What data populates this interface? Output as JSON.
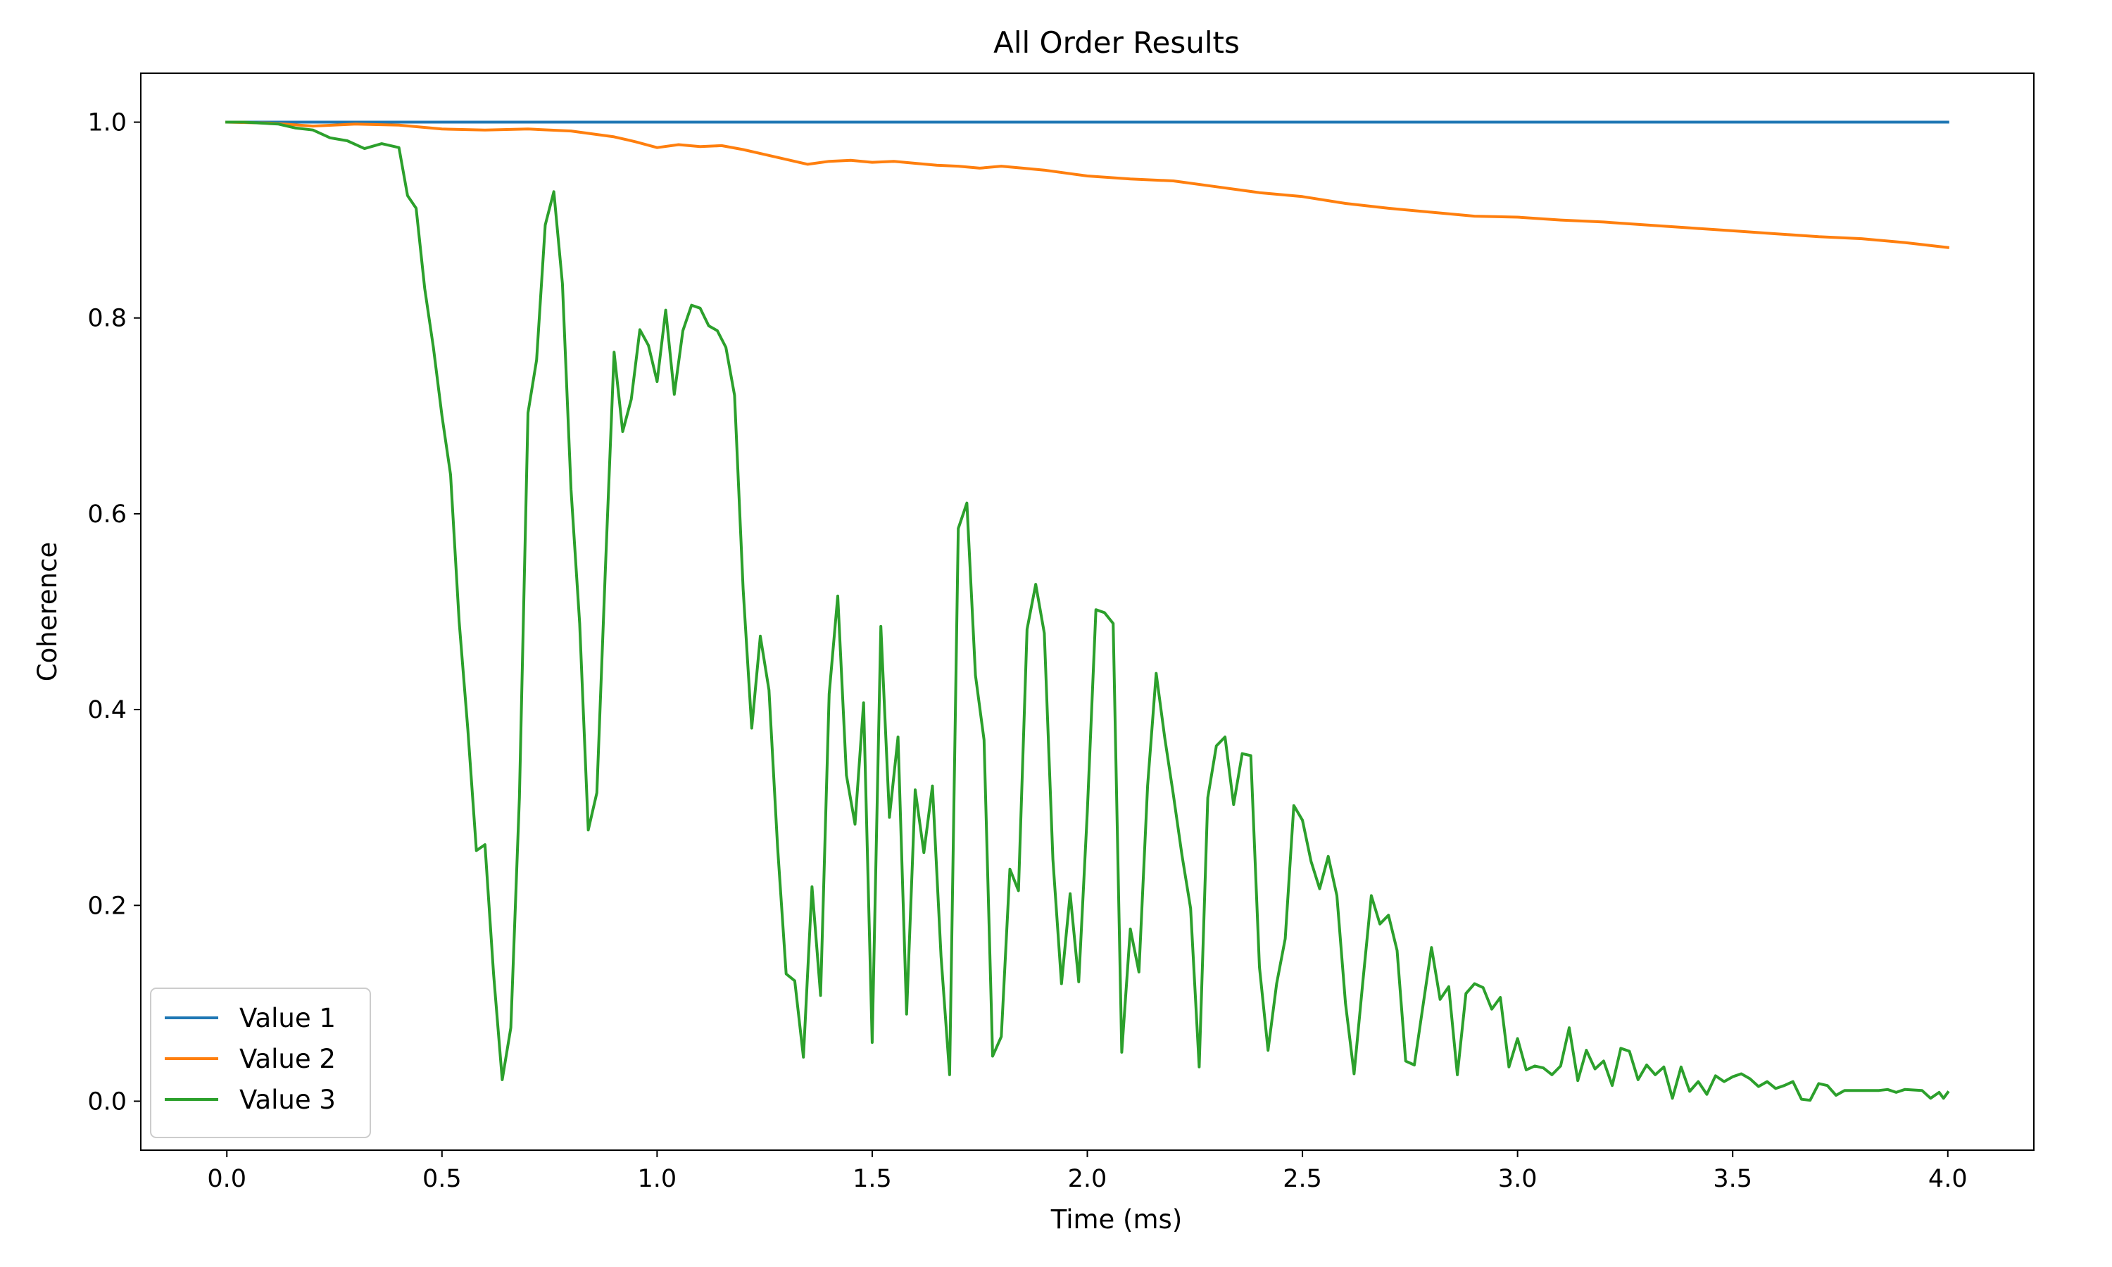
{
  "chart_data": {
    "type": "line",
    "title": "All Order Results",
    "xlabel": "Time (ms)",
    "ylabel": "Coherence",
    "xlim": [
      -0.2,
      4.2
    ],
    "ylim": [
      -0.05,
      1.05
    ],
    "xticks": [
      0.0,
      0.5,
      1.0,
      1.5,
      2.0,
      2.5,
      3.0,
      3.5,
      4.0
    ],
    "xtick_labels": [
      "0.0",
      "0.5",
      "1.0",
      "1.5",
      "2.0",
      "2.5",
      "3.0",
      "3.5",
      "4.0"
    ],
    "yticks": [
      0.0,
      0.2,
      0.4,
      0.6,
      0.8,
      1.0
    ],
    "ytick_labels": [
      "0.0",
      "0.2",
      "0.4",
      "0.6",
      "0.8",
      "1.0"
    ],
    "grid": false,
    "legend_position": "lower-left",
    "series": [
      {
        "name": "Value 1",
        "color": "#1f77b4",
        "points": [
          [
            0.0,
            1.0
          ],
          [
            4.0,
            1.0
          ]
        ]
      },
      {
        "name": "Value 2",
        "color": "#ff7f0e",
        "points": [
          [
            0.0,
            1.0
          ],
          [
            0.1,
            0.999
          ],
          [
            0.2,
            0.996
          ],
          [
            0.3,
            0.998
          ],
          [
            0.4,
            0.997
          ],
          [
            0.5,
            0.993
          ],
          [
            0.6,
            0.992
          ],
          [
            0.7,
            0.993
          ],
          [
            0.8,
            0.991
          ],
          [
            0.9,
            0.985
          ],
          [
            0.95,
            0.98
          ],
          [
            1.0,
            0.974
          ],
          [
            1.05,
            0.977
          ],
          [
            1.1,
            0.975
          ],
          [
            1.15,
            0.976
          ],
          [
            1.2,
            0.972
          ],
          [
            1.25,
            0.967
          ],
          [
            1.3,
            0.962
          ],
          [
            1.35,
            0.957
          ],
          [
            1.4,
            0.96
          ],
          [
            1.45,
            0.961
          ],
          [
            1.5,
            0.959
          ],
          [
            1.55,
            0.96
          ],
          [
            1.6,
            0.958
          ],
          [
            1.65,
            0.956
          ],
          [
            1.7,
            0.955
          ],
          [
            1.75,
            0.953
          ],
          [
            1.8,
            0.955
          ],
          [
            1.85,
            0.953
          ],
          [
            1.9,
            0.951
          ],
          [
            2.0,
            0.945
          ],
          [
            2.1,
            0.942
          ],
          [
            2.2,
            0.94
          ],
          [
            2.3,
            0.934
          ],
          [
            2.4,
            0.928
          ],
          [
            2.5,
            0.924
          ],
          [
            2.6,
            0.917
          ],
          [
            2.7,
            0.912
          ],
          [
            2.8,
            0.908
          ],
          [
            2.9,
            0.904
          ],
          [
            3.0,
            0.903
          ],
          [
            3.1,
            0.9
          ],
          [
            3.2,
            0.898
          ],
          [
            3.3,
            0.895
          ],
          [
            3.4,
            0.892
          ],
          [
            3.5,
            0.889
          ],
          [
            3.6,
            0.886
          ],
          [
            3.7,
            0.883
          ],
          [
            3.8,
            0.881
          ],
          [
            3.9,
            0.877
          ],
          [
            4.0,
            0.872
          ]
        ]
      },
      {
        "name": "Value 3",
        "color": "#2ca02c",
        "points": [
          [
            0.0,
            1.0
          ],
          [
            0.04,
            1.0
          ],
          [
            0.08,
            0.999
          ],
          [
            0.12,
            0.998
          ],
          [
            0.16,
            0.994
          ],
          [
            0.2,
            0.992
          ],
          [
            0.24,
            0.984
          ],
          [
            0.28,
            0.981
          ],
          [
            0.32,
            0.973
          ],
          [
            0.36,
            0.978
          ],
          [
            0.4,
            0.974
          ],
          [
            0.42,
            0.925
          ],
          [
            0.44,
            0.912
          ],
          [
            0.46,
            0.83
          ],
          [
            0.48,
            0.77
          ],
          [
            0.5,
            0.7
          ],
          [
            0.52,
            0.64
          ],
          [
            0.54,
            0.49
          ],
          [
            0.56,
            0.38
          ],
          [
            0.58,
            0.256
          ],
          [
            0.6,
            0.262
          ],
          [
            0.62,
            0.13
          ],
          [
            0.64,
            0.022
          ],
          [
            0.66,
            0.075
          ],
          [
            0.68,
            0.31
          ],
          [
            0.7,
            0.703
          ],
          [
            0.72,
            0.757
          ],
          [
            0.74,
            0.895
          ],
          [
            0.76,
            0.929
          ],
          [
            0.78,
            0.835
          ],
          [
            0.8,
            0.625
          ],
          [
            0.82,
            0.488
          ],
          [
            0.84,
            0.277
          ],
          [
            0.86,
            0.315
          ],
          [
            0.88,
            0.545
          ],
          [
            0.9,
            0.765
          ],
          [
            0.92,
            0.684
          ],
          [
            0.94,
            0.717
          ],
          [
            0.96,
            0.788
          ],
          [
            0.98,
            0.772
          ],
          [
            1.0,
            0.735
          ],
          [
            1.02,
            0.808
          ],
          [
            1.04,
            0.722
          ],
          [
            1.06,
            0.787
          ],
          [
            1.08,
            0.813
          ],
          [
            1.1,
            0.81
          ],
          [
            1.12,
            0.792
          ],
          [
            1.14,
            0.787
          ],
          [
            1.16,
            0.77
          ],
          [
            1.18,
            0.721
          ],
          [
            1.2,
            0.523
          ],
          [
            1.22,
            0.381
          ],
          [
            1.24,
            0.475
          ],
          [
            1.26,
            0.42
          ],
          [
            1.28,
            0.26
          ],
          [
            1.3,
            0.13
          ],
          [
            1.32,
            0.123
          ],
          [
            1.34,
            0.045
          ],
          [
            1.36,
            0.219
          ],
          [
            1.38,
            0.108
          ],
          [
            1.4,
            0.416
          ],
          [
            1.42,
            0.516
          ],
          [
            1.44,
            0.333
          ],
          [
            1.46,
            0.283
          ],
          [
            1.48,
            0.407
          ],
          [
            1.5,
            0.06
          ],
          [
            1.52,
            0.485
          ],
          [
            1.54,
            0.29
          ],
          [
            1.56,
            0.372
          ],
          [
            1.58,
            0.089
          ],
          [
            1.6,
            0.318
          ],
          [
            1.62,
            0.254
          ],
          [
            1.64,
            0.322
          ],
          [
            1.66,
            0.148
          ],
          [
            1.68,
            0.027
          ],
          [
            1.7,
            0.585
          ],
          [
            1.72,
            0.611
          ],
          [
            1.74,
            0.435
          ],
          [
            1.76,
            0.369
          ],
          [
            1.78,
            0.046
          ],
          [
            1.8,
            0.066
          ],
          [
            1.82,
            0.237
          ],
          [
            1.84,
            0.215
          ],
          [
            1.86,
            0.482
          ],
          [
            1.88,
            0.528
          ],
          [
            1.9,
            0.478
          ],
          [
            1.92,
            0.247
          ],
          [
            1.94,
            0.12
          ],
          [
            1.96,
            0.212
          ],
          [
            1.98,
            0.122
          ],
          [
            2.0,
            0.296
          ],
          [
            2.02,
            0.502
          ],
          [
            2.04,
            0.499
          ],
          [
            2.06,
            0.488
          ],
          [
            2.08,
            0.05
          ],
          [
            2.1,
            0.176
          ],
          [
            2.12,
            0.132
          ],
          [
            2.14,
            0.322
          ],
          [
            2.16,
            0.437
          ],
          [
            2.18,
            0.371
          ],
          [
            2.2,
            0.313
          ],
          [
            2.22,
            0.251
          ],
          [
            2.24,
            0.197
          ],
          [
            2.26,
            0.035
          ],
          [
            2.28,
            0.31
          ],
          [
            2.3,
            0.363
          ],
          [
            2.32,
            0.372
          ],
          [
            2.34,
            0.303
          ],
          [
            2.36,
            0.355
          ],
          [
            2.38,
            0.353
          ],
          [
            2.4,
            0.137
          ],
          [
            2.42,
            0.052
          ],
          [
            2.44,
            0.12
          ],
          [
            2.46,
            0.166
          ],
          [
            2.48,
            0.302
          ],
          [
            2.5,
            0.287
          ],
          [
            2.52,
            0.245
          ],
          [
            2.54,
            0.217
          ],
          [
            2.56,
            0.25
          ],
          [
            2.58,
            0.21
          ],
          [
            2.6,
            0.1
          ],
          [
            2.62,
            0.028
          ],
          [
            2.64,
            0.12
          ],
          [
            2.66,
            0.21
          ],
          [
            2.68,
            0.181
          ],
          [
            2.7,
            0.19
          ],
          [
            2.72,
            0.154
          ],
          [
            2.74,
            0.041
          ],
          [
            2.76,
            0.037
          ],
          [
            2.78,
            0.097
          ],
          [
            2.8,
            0.157
          ],
          [
            2.82,
            0.104
          ],
          [
            2.84,
            0.117
          ],
          [
            2.86,
            0.027
          ],
          [
            2.88,
            0.11
          ],
          [
            2.9,
            0.12
          ],
          [
            2.92,
            0.116
          ],
          [
            2.94,
            0.094
          ],
          [
            2.96,
            0.106
          ],
          [
            2.98,
            0.035
          ],
          [
            3.0,
            0.064
          ],
          [
            3.02,
            0.032
          ],
          [
            3.04,
            0.036
          ],
          [
            3.06,
            0.034
          ],
          [
            3.08,
            0.027
          ],
          [
            3.1,
            0.036
          ],
          [
            3.12,
            0.075
          ],
          [
            3.14,
            0.021
          ],
          [
            3.16,
            0.052
          ],
          [
            3.18,
            0.033
          ],
          [
            3.2,
            0.041
          ],
          [
            3.22,
            0.016
          ],
          [
            3.24,
            0.054
          ],
          [
            3.26,
            0.051
          ],
          [
            3.28,
            0.022
          ],
          [
            3.3,
            0.037
          ],
          [
            3.32,
            0.027
          ],
          [
            3.34,
            0.035
          ],
          [
            3.36,
            0.003
          ],
          [
            3.38,
            0.035
          ],
          [
            3.4,
            0.01
          ],
          [
            3.42,
            0.02
          ],
          [
            3.44,
            0.007
          ],
          [
            3.46,
            0.026
          ],
          [
            3.48,
            0.02
          ],
          [
            3.5,
            0.025
          ],
          [
            3.52,
            0.028
          ],
          [
            3.54,
            0.023
          ],
          [
            3.56,
            0.015
          ],
          [
            3.58,
            0.02
          ],
          [
            3.6,
            0.013
          ],
          [
            3.62,
            0.016
          ],
          [
            3.64,
            0.02
          ],
          [
            3.66,
            0.002
          ],
          [
            3.68,
            0.001
          ],
          [
            3.7,
            0.018
          ],
          [
            3.72,
            0.016
          ],
          [
            3.74,
            0.006
          ],
          [
            3.76,
            0.011
          ],
          [
            3.8,
            0.011
          ],
          [
            3.84,
            0.011
          ],
          [
            3.86,
            0.012
          ],
          [
            3.88,
            0.009
          ],
          [
            3.9,
            0.012
          ],
          [
            3.94,
            0.011
          ],
          [
            3.96,
            0.003
          ],
          [
            3.98,
            0.009
          ],
          [
            3.99,
            0.003
          ],
          [
            4.0,
            0.009
          ]
        ]
      }
    ]
  }
}
